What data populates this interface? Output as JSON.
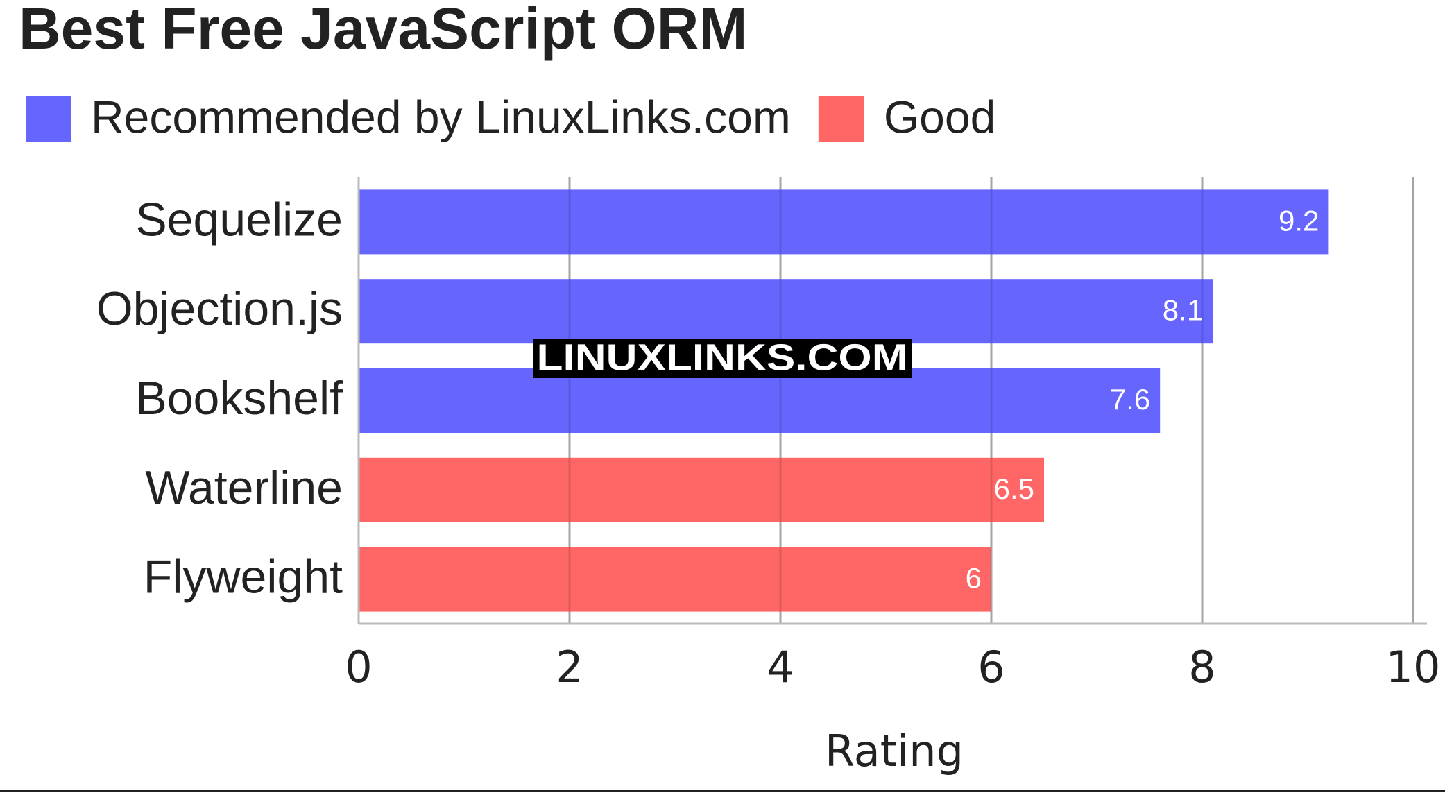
{
  "chart_data": {
    "type": "bar",
    "orientation": "horizontal",
    "title": "Best Free JavaScript ORM",
    "categories": [
      "Sequelize",
      "Objection.js",
      "Bookshelf",
      "Waterline",
      "Flyweight"
    ],
    "series": [
      {
        "name": "Recommended by LinuxLinks.com",
        "color": "#6666ff",
        "values": [
          9.2,
          8.1,
          7.6,
          null,
          null
        ]
      },
      {
        "name": "Good",
        "color": "#ff6666",
        "values": [
          null,
          null,
          null,
          6.5,
          6
        ]
      }
    ],
    "xlabel": "Rating",
    "xlim": [
      0,
      10
    ],
    "xticks": [
      0,
      2,
      4,
      6,
      8,
      10
    ],
    "grid": true,
    "watermark": "LINUXLINKS.COM"
  }
}
